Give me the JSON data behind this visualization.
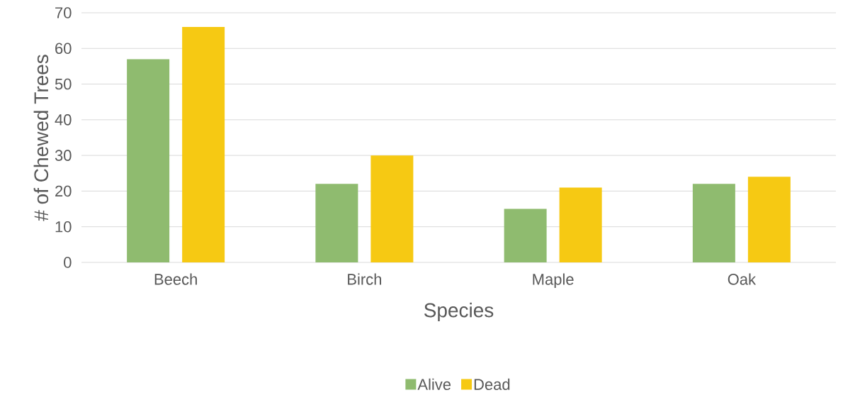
{
  "chart_data": {
    "type": "bar",
    "xlabel": "Species",
    "ylabel": "# of Chewed Trees",
    "categories": [
      "Beech",
      "Birch",
      "Maple",
      "Oak"
    ],
    "series": [
      {
        "name": "Alive",
        "color": "#8fbb6f",
        "values": [
          57,
          22,
          15,
          22
        ]
      },
      {
        "name": "Dead",
        "color": "#f6c913",
        "values": [
          66,
          30,
          21,
          24
        ]
      }
    ],
    "ylim": [
      0,
      70
    ],
    "yticks": [
      0,
      10,
      20,
      30,
      40,
      50,
      60,
      70
    ],
    "grid": "y",
    "legend": "bottom"
  }
}
